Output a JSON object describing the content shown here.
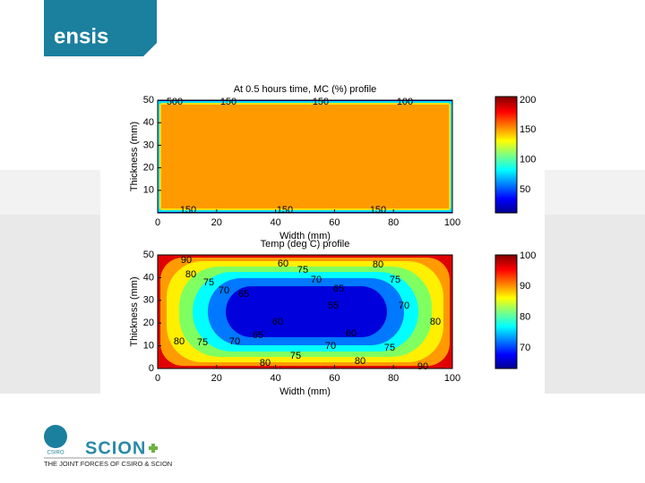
{
  "header": {
    "logo": "ensis"
  },
  "plots": [
    {
      "title": "At 0.5 hours time, MC (%) profile",
      "xlabel": "Width (mm)",
      "ylabel": "Thickness (mm)",
      "xticks": [
        "0",
        "20",
        "40",
        "60",
        "80",
        "100"
      ],
      "yticks": [
        "10",
        "20",
        "30",
        "40",
        "50"
      ],
      "colorbar_ticks": [
        "50",
        "100",
        "150",
        "200"
      ],
      "contour_labels": [
        "500",
        "150",
        "150",
        "100",
        "150",
        "150",
        "150"
      ]
    },
    {
      "title": "Temp (deg C) profile",
      "xlabel": "Width (mm)",
      "ylabel": "Thickness (mm)",
      "xticks": [
        "0",
        "20",
        "40",
        "60",
        "80",
        "100"
      ],
      "yticks": [
        "0",
        "10",
        "20",
        "30",
        "40",
        "50"
      ],
      "colorbar_ticks": [
        "70",
        "80",
        "90",
        "100"
      ],
      "contour_labels": [
        "90",
        "80",
        "75",
        "70",
        "65",
        "60",
        "75",
        "70",
        "65",
        "55",
        "80",
        "75",
        "70",
        "80",
        "60",
        "80",
        "75",
        "70",
        "65",
        "60",
        "70",
        "75",
        "75",
        "80",
        "80",
        "90"
      ]
    }
  ],
  "footer": {
    "csiro": "CSIRO",
    "brand": "SCION",
    "tagline": "THE JOINT FORCES OF CSIRO & SCION"
  }
}
